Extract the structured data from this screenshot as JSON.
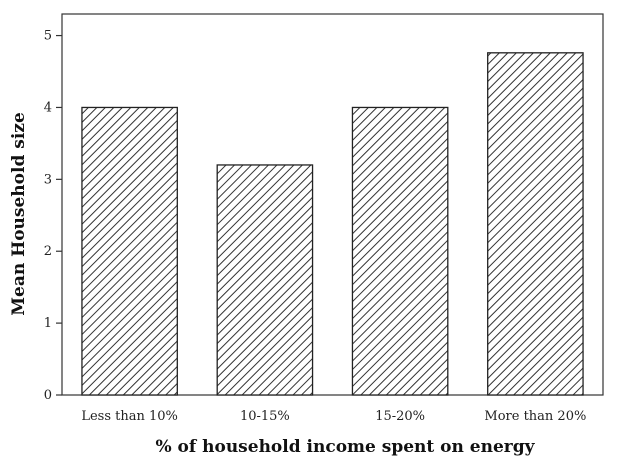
{
  "chart_data": {
    "type": "bar",
    "title": "",
    "xlabel": "% of household income spent on energy",
    "ylabel": "Mean Household size",
    "categories": [
      "Less than 10%",
      "10-15%",
      "15-20%",
      "More than 20%"
    ],
    "values": [
      4.0,
      3.2,
      4.0,
      4.76
    ],
    "ylim": [
      0,
      5.3
    ],
    "yticks": [
      0,
      1,
      2,
      3,
      4,
      5
    ],
    "grid": false,
    "legend": "none",
    "bar_fill": "diagonal-hatch",
    "colors": {
      "bar_outline": "#222222",
      "hatch": "#333333",
      "bar_background": "#ffffff",
      "axis": "#333333"
    }
  }
}
